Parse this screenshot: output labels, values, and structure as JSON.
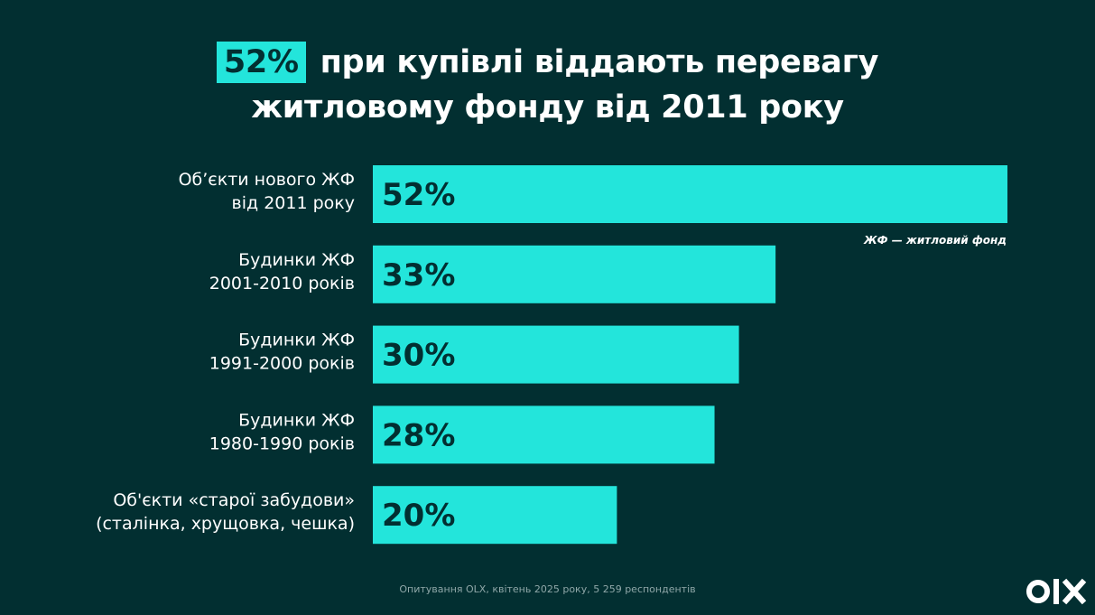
{
  "title": {
    "highlight": "52%",
    "line1_rest": "при купівлі віддають перевагу",
    "line2": "житловому фонду від 2011 року"
  },
  "chart_data": {
    "type": "bar",
    "orientation": "horizontal",
    "categories": [
      [
        "Об’єкти нового ЖФ",
        "від 2011 року"
      ],
      [
        "Будинки ЖФ",
        "2001-2010 років"
      ],
      [
        "Будинки ЖФ",
        "1991-2000 років"
      ],
      [
        "Будинки ЖФ",
        "1980-1990 років"
      ],
      [
        "Об'єкти «старої забудови»",
        "(сталінка, хрущовка, чешка)"
      ]
    ],
    "values": [
      52,
      33,
      30,
      28,
      20
    ],
    "value_labels": [
      "52%",
      "33%",
      "30%",
      "28%",
      "20%"
    ],
    "unit": "%",
    "bar_color": "#23e5db"
  },
  "note": "ЖФ — житловий фонд",
  "source": "Опитування OLX, квітень 2025 року, 5 259 респондентів",
  "logo": {
    "text": "olx",
    "color": "#ffffff"
  },
  "colors": {
    "background": "#022f31",
    "accent": "#23e5db"
  }
}
